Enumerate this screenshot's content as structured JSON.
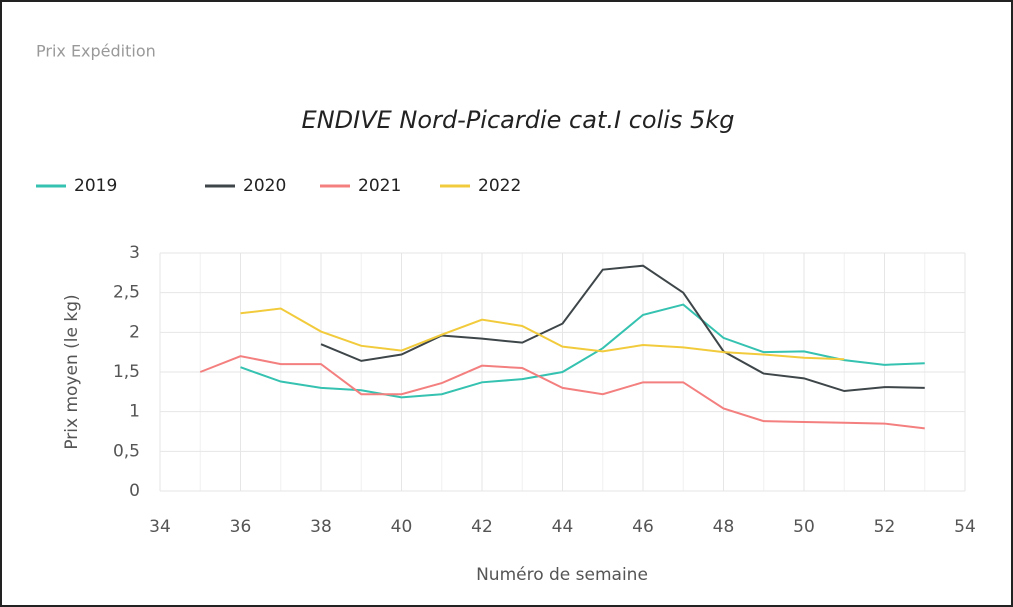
{
  "header": "Prix Expédition",
  "chart_data": {
    "type": "line",
    "title": "ENDIVE Nord-Picardie cat.I colis 5kg",
    "xlabel": "Numéro de semaine",
    "ylabel": "Prix moyen  (le kg)",
    "x": [
      35,
      36,
      37,
      38,
      39,
      40,
      41,
      42,
      43,
      44,
      45,
      46,
      47,
      48,
      49,
      50,
      51,
      52,
      53
    ],
    "series": [
      {
        "name": "2019",
        "color": "#35c2b0",
        "values": [
          null,
          1.56,
          1.38,
          1.3,
          1.27,
          1.18,
          1.22,
          1.37,
          1.41,
          1.5,
          1.8,
          2.22,
          2.35,
          1.93,
          1.75,
          1.76,
          1.65,
          1.59,
          1.61
        ]
      },
      {
        "name": "2020",
        "color": "#3e4649",
        "values": [
          null,
          null,
          null,
          1.85,
          1.64,
          1.72,
          1.96,
          1.92,
          1.87,
          2.11,
          2.79,
          2.84,
          2.5,
          1.76,
          1.48,
          1.42,
          1.26,
          1.31,
          1.3
        ]
      },
      {
        "name": "2021",
        "color": "#f47f7f",
        "values": [
          1.5,
          1.7,
          1.6,
          1.6,
          1.22,
          1.22,
          1.36,
          1.58,
          1.55,
          1.3,
          1.22,
          1.37,
          1.37,
          1.04,
          0.88,
          0.87,
          0.86,
          0.85,
          0.79
        ]
      },
      {
        "name": "2022",
        "color": "#f2cb3c",
        "values": [
          null,
          2.24,
          2.3,
          2.01,
          1.83,
          1.77,
          1.97,
          2.16,
          2.08,
          1.82,
          1.76,
          1.84,
          1.81,
          1.75,
          1.72,
          1.68,
          1.66,
          null,
          null
        ]
      }
    ],
    "xlim": [
      34,
      54
    ],
    "xticks": [
      34,
      36,
      38,
      40,
      42,
      44,
      46,
      48,
      50,
      52,
      54
    ],
    "ylim": [
      0,
      3
    ],
    "yticks": [
      0,
      {
        "value": 0.5,
        "label": "0,5"
      },
      1,
      {
        "value": 1.5,
        "label": "1,5"
      },
      2,
      {
        "value": 2.5,
        "label": "2,5"
      },
      3
    ],
    "grid": true,
    "legend": "top-left"
  }
}
